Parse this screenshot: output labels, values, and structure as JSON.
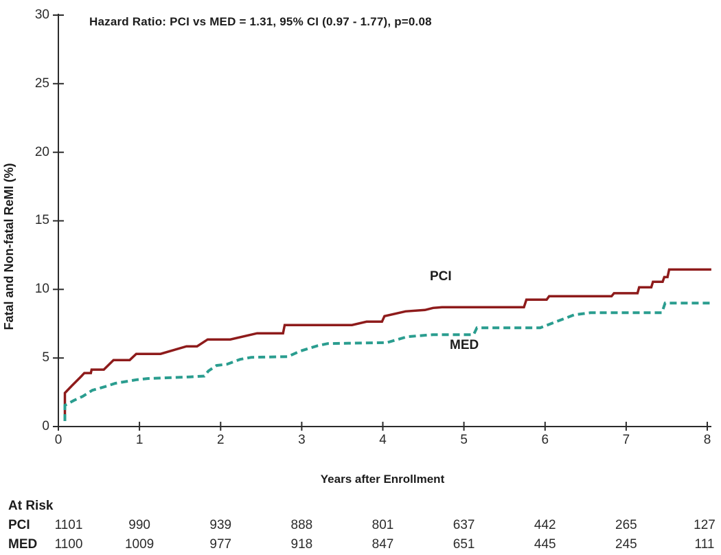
{
  "annotation": "Hazard Ratio: PCI vs MED = 1.31, 95% CI (0.97 - 1.77), p=0.08",
  "chart_data": {
    "type": "line",
    "subtype": "kaplan-meier-step-curves",
    "title": "Hazard Ratio: PCI vs MED = 1.31, 95% CI (0.97 - 1.77), p=0.08",
    "xlabel": "Years after Enrollment",
    "ylabel": "Fatal and Non-fatal ReMI (%)",
    "xlim": [
      0,
      8.1
    ],
    "ylim": [
      0,
      30
    ],
    "xticks": [
      0,
      1,
      2,
      3,
      4,
      5,
      6,
      7,
      8
    ],
    "yticks": [
      0,
      5,
      10,
      15,
      20,
      25,
      30
    ],
    "grid": false,
    "legend_position": "inline-curve-labels",
    "series": [
      {
        "name": "PCI",
        "line": "solid",
        "color": "#8e1b1b",
        "points": [
          [
            0.08,
            0.55
          ],
          [
            0.08,
            2.45
          ],
          [
            0.17,
            3.0
          ],
          [
            0.28,
            3.65
          ],
          [
            0.32,
            3.9
          ],
          [
            0.4,
            3.9
          ],
          [
            0.41,
            4.15
          ],
          [
            0.56,
            4.15
          ],
          [
            0.68,
            4.85
          ],
          [
            0.88,
            4.85
          ],
          [
            0.96,
            5.3
          ],
          [
            1.26,
            5.3
          ],
          [
            1.58,
            5.85
          ],
          [
            1.71,
            5.85
          ],
          [
            1.84,
            6.35
          ],
          [
            2.12,
            6.35
          ],
          [
            2.45,
            6.8
          ],
          [
            2.77,
            6.8
          ],
          [
            2.79,
            7.4
          ],
          [
            3.62,
            7.4
          ],
          [
            3.8,
            7.65
          ],
          [
            3.99,
            7.65
          ],
          [
            4.02,
            8.05
          ],
          [
            4.28,
            8.4
          ],
          [
            4.52,
            8.5
          ],
          [
            4.62,
            8.65
          ],
          [
            4.73,
            8.7
          ],
          [
            5.74,
            8.7
          ],
          [
            5.77,
            9.25
          ],
          [
            6.02,
            9.25
          ],
          [
            6.05,
            9.5
          ],
          [
            6.82,
            9.5
          ],
          [
            6.85,
            9.72
          ],
          [
            7.14,
            9.72
          ],
          [
            7.16,
            10.15
          ],
          [
            7.31,
            10.15
          ],
          [
            7.33,
            10.55
          ],
          [
            7.45,
            10.55
          ],
          [
            7.47,
            10.9
          ],
          [
            7.51,
            10.9
          ],
          [
            7.53,
            11.45
          ],
          [
            8.05,
            11.45
          ]
        ]
      },
      {
        "name": "MED",
        "line": "dashed",
        "color": "#2a9d8f",
        "points": [
          [
            0.08,
            0.4
          ],
          [
            0.08,
            1.55
          ],
          [
            0.19,
            1.9
          ],
          [
            0.3,
            2.2
          ],
          [
            0.42,
            2.65
          ],
          [
            0.57,
            2.9
          ],
          [
            0.7,
            3.15
          ],
          [
            0.85,
            3.3
          ],
          [
            0.97,
            3.42
          ],
          [
            1.1,
            3.5
          ],
          [
            1.62,
            3.62
          ],
          [
            1.8,
            3.68
          ],
          [
            1.85,
            4.05
          ],
          [
            1.95,
            4.45
          ],
          [
            2.08,
            4.55
          ],
          [
            2.24,
            4.9
          ],
          [
            2.38,
            5.05
          ],
          [
            2.83,
            5.1
          ],
          [
            2.98,
            5.5
          ],
          [
            3.2,
            5.9
          ],
          [
            3.32,
            6.05
          ],
          [
            4.05,
            6.12
          ],
          [
            4.3,
            6.55
          ],
          [
            4.62,
            6.7
          ],
          [
            5.12,
            6.7
          ],
          [
            5.16,
            7.2
          ],
          [
            5.94,
            7.2
          ],
          [
            6.36,
            8.15
          ],
          [
            6.56,
            8.3
          ],
          [
            7.44,
            8.3
          ],
          [
            7.48,
            9.0
          ],
          [
            8.04,
            9.0
          ]
        ]
      }
    ]
  },
  "curve_labels": {
    "pci": "PCI",
    "med": "MED"
  },
  "at_risk": {
    "title": "At Risk",
    "rows": [
      {
        "label": "PCI",
        "values": [
          "1101",
          "990",
          "939",
          "888",
          "801",
          "637",
          "442",
          "265",
          "127"
        ]
      },
      {
        "label": "MED",
        "values": [
          "1100",
          "1009",
          "977",
          "918",
          "847",
          "651",
          "445",
          "245",
          "111"
        ]
      }
    ]
  },
  "colors": {
    "pci": "#8e1b1b",
    "med": "#2a9d8f",
    "axis": "#2b2b2b",
    "text": "#1c1c1c"
  }
}
